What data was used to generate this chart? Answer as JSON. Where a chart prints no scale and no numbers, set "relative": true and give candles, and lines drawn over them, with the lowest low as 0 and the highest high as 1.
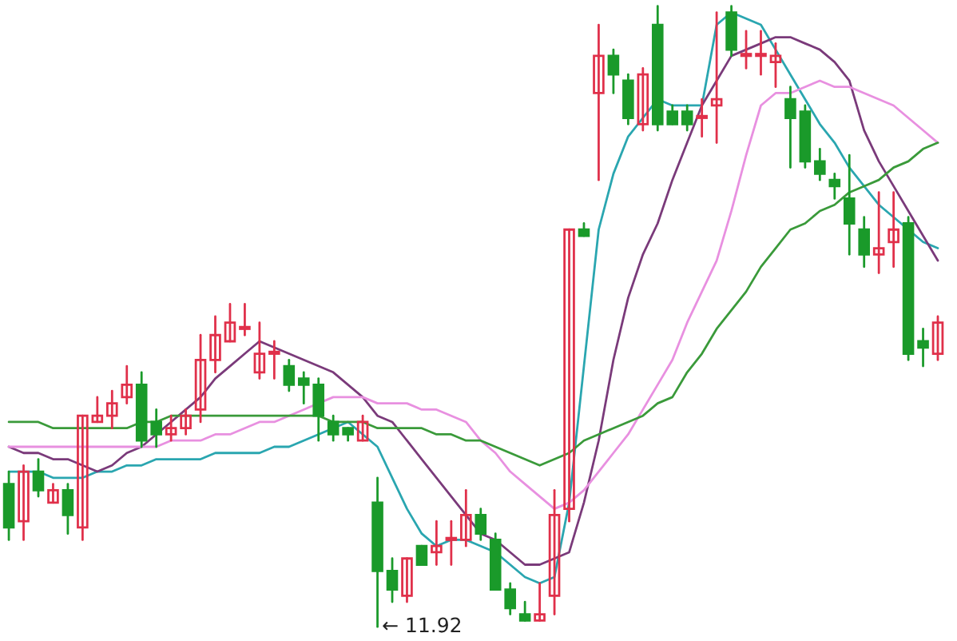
{
  "chart_data": {
    "type": "candlestick",
    "relative": true,
    "categories": [
      null,
      null,
      null,
      null,
      null,
      null,
      null,
      null,
      null,
      null,
      null,
      null,
      null,
      null,
      null,
      null,
      null,
      null,
      null,
      null,
      null,
      null,
      null,
      null,
      null,
      null,
      null,
      null,
      null,
      null,
      null,
      null,
      null,
      null,
      null,
      null,
      null,
      null,
      null,
      null,
      null,
      null,
      null,
      null,
      null,
      null,
      null,
      null,
      null,
      null,
      null,
      null,
      null,
      null,
      null,
      null,
      null,
      null,
      null,
      null,
      null,
      null,
      null,
      null
    ],
    "ohlc": [
      [
        0.23,
        0.25,
        0.14,
        0.16
      ],
      [
        0.17,
        0.26,
        0.14,
        0.25
      ],
      [
        0.25,
        0.27,
        0.21,
        0.22
      ],
      [
        0.2,
        0.23,
        0.2,
        0.22
      ],
      [
        0.22,
        0.23,
        0.15,
        0.18
      ],
      [
        0.16,
        0.34,
        0.14,
        0.34
      ],
      [
        0.33,
        0.37,
        0.33,
        0.34
      ],
      [
        0.34,
        0.38,
        0.32,
        0.36
      ],
      [
        0.37,
        0.42,
        0.36,
        0.39
      ],
      [
        0.39,
        0.41,
        0.29,
        0.3
      ],
      [
        0.33,
        0.35,
        0.29,
        0.31
      ],
      [
        0.31,
        0.34,
        0.3,
        0.32
      ],
      [
        0.32,
        0.35,
        0.31,
        0.34
      ],
      [
        0.35,
        0.47,
        0.33,
        0.43
      ],
      [
        0.43,
        0.5,
        0.41,
        0.47
      ],
      [
        0.46,
        0.52,
        0.46,
        0.49
      ],
      [
        0.48,
        0.52,
        0.47,
        0.48
      ],
      [
        0.41,
        0.49,
        0.4,
        0.44
      ],
      [
        0.44,
        0.46,
        0.4,
        0.44
      ],
      [
        0.42,
        0.43,
        0.38,
        0.39
      ],
      [
        0.4,
        0.41,
        0.36,
        0.39
      ],
      [
        0.39,
        0.4,
        0.3,
        0.34
      ],
      [
        0.33,
        0.34,
        0.3,
        0.31
      ],
      [
        0.32,
        0.32,
        0.3,
        0.31
      ],
      [
        0.3,
        0.34,
        0.3,
        0.33
      ],
      [
        0.2,
        0.24,
        0.0,
        0.09
      ],
      [
        0.09,
        0.11,
        0.04,
        0.06
      ],
      [
        0.05,
        0.11,
        0.04,
        0.11
      ],
      [
        0.13,
        0.13,
        0.1,
        0.1
      ],
      [
        0.12,
        0.17,
        0.1,
        0.13
      ],
      [
        0.14,
        0.17,
        0.1,
        0.14
      ],
      [
        0.14,
        0.22,
        0.13,
        0.18
      ],
      [
        0.18,
        0.19,
        0.14,
        0.15
      ],
      [
        0.14,
        0.15,
        0.06,
        0.06
      ],
      [
        0.06,
        0.07,
        0.02,
        0.03
      ],
      [
        0.02,
        0.04,
        0.01,
        0.01
      ],
      [
        0.01,
        0.07,
        0.01,
        0.02
      ],
      [
        0.05,
        0.22,
        0.02,
        0.18
      ],
      [
        0.19,
        0.64,
        0.17,
        0.64
      ],
      [
        0.64,
        0.65,
        0.63,
        0.63
      ],
      [
        0.86,
        0.97,
        0.72,
        0.92
      ],
      [
        0.92,
        0.93,
        0.86,
        0.89
      ],
      [
        0.88,
        0.89,
        0.81,
        0.82
      ],
      [
        0.81,
        0.9,
        0.8,
        0.89
      ],
      [
        0.97,
        1.0,
        0.8,
        0.81
      ],
      [
        0.83,
        0.84,
        0.81,
        0.81
      ],
      [
        0.83,
        0.84,
        0.8,
        0.81
      ],
      [
        0.82,
        0.85,
        0.79,
        0.82
      ],
      [
        0.84,
        0.99,
        0.78,
        0.85
      ],
      [
        0.99,
        1.0,
        0.92,
        0.93
      ],
      [
        0.92,
        0.96,
        0.9,
        0.92
      ],
      [
        0.92,
        0.96,
        0.89,
        0.92
      ],
      [
        0.91,
        0.94,
        0.87,
        0.92
      ],
      [
        0.85,
        0.87,
        0.74,
        0.82
      ],
      [
        0.83,
        0.84,
        0.74,
        0.75
      ],
      [
        0.75,
        0.77,
        0.72,
        0.73
      ],
      [
        0.72,
        0.73,
        0.69,
        0.71
      ],
      [
        0.69,
        0.76,
        0.6,
        0.65
      ],
      [
        0.64,
        0.66,
        0.58,
        0.6
      ],
      [
        0.6,
        0.7,
        0.57,
        0.61
      ],
      [
        0.62,
        0.7,
        0.58,
        0.64
      ],
      [
        0.65,
        0.66,
        0.43,
        0.44
      ],
      [
        0.46,
        0.48,
        0.42,
        0.45
      ],
      [
        0.44,
        0.5,
        0.43,
        0.49
      ]
    ],
    "series": [
      {
        "type": "line",
        "color": "#2aa6b0",
        "values": [
          0.25,
          0.25,
          0.25,
          0.24,
          0.24,
          0.24,
          0.25,
          0.25,
          0.26,
          0.26,
          0.27,
          0.27,
          0.27,
          0.27,
          0.28,
          0.28,
          0.28,
          0.28,
          0.29,
          0.29,
          0.3,
          0.31,
          0.32,
          0.33,
          0.31,
          0.29,
          0.24,
          0.19,
          0.15,
          0.13,
          0.14,
          0.14,
          0.13,
          0.12,
          0.1,
          0.08,
          0.07,
          0.08,
          0.2,
          0.42,
          0.64,
          0.73,
          0.79,
          0.82,
          0.85,
          0.84,
          0.84,
          0.84,
          0.97,
          0.99,
          0.98,
          0.97,
          0.93,
          0.89,
          0.85,
          0.81,
          0.78,
          0.74,
          0.71,
          0.68,
          0.66,
          0.64,
          0.62,
          0.61
        ]
      },
      {
        "type": "line",
        "color": "#7a3a7a",
        "values": [
          0.29,
          0.28,
          0.28,
          0.27,
          0.27,
          0.26,
          0.25,
          0.26,
          0.28,
          0.29,
          0.31,
          0.33,
          0.35,
          0.37,
          0.4,
          0.42,
          0.44,
          0.46,
          0.45,
          0.44,
          0.43,
          0.42,
          0.41,
          0.39,
          0.37,
          0.34,
          0.33,
          0.3,
          0.27,
          0.24,
          0.21,
          0.18,
          0.15,
          0.14,
          0.12,
          0.1,
          0.1,
          0.11,
          0.12,
          0.2,
          0.3,
          0.43,
          0.53,
          0.6,
          0.65,
          0.72,
          0.78,
          0.84,
          0.88,
          0.92,
          0.93,
          0.94,
          0.95,
          0.95,
          0.94,
          0.93,
          0.91,
          0.88,
          0.8,
          0.75,
          0.71,
          0.67,
          0.63,
          0.59
        ]
      },
      {
        "type": "line",
        "color": "#e890e0",
        "values": [
          0.29,
          0.29,
          0.29,
          0.29,
          0.29,
          0.29,
          0.29,
          0.29,
          0.29,
          0.29,
          0.29,
          0.3,
          0.3,
          0.3,
          0.31,
          0.31,
          0.32,
          0.33,
          0.33,
          0.34,
          0.35,
          0.36,
          0.37,
          0.37,
          0.37,
          0.36,
          0.36,
          0.36,
          0.35,
          0.35,
          0.34,
          0.33,
          0.3,
          0.28,
          0.25,
          0.23,
          0.21,
          0.19,
          0.2,
          0.22,
          0.25,
          0.28,
          0.31,
          0.35,
          0.39,
          0.43,
          0.49,
          0.54,
          0.59,
          0.67,
          0.76,
          0.84,
          0.86,
          0.86,
          0.87,
          0.88,
          0.87,
          0.87,
          0.86,
          0.85,
          0.84,
          0.82,
          0.8,
          0.78
        ]
      },
      {
        "type": "line",
        "color": "#3a9a3a",
        "values": [
          0.33,
          0.33,
          0.33,
          0.32,
          0.32,
          0.32,
          0.32,
          0.32,
          0.32,
          0.33,
          0.33,
          0.34,
          0.34,
          0.34,
          0.34,
          0.34,
          0.34,
          0.34,
          0.34,
          0.34,
          0.34,
          0.34,
          0.33,
          0.33,
          0.33,
          0.32,
          0.32,
          0.32,
          0.32,
          0.31,
          0.31,
          0.3,
          0.3,
          0.29,
          0.28,
          0.27,
          0.26,
          0.27,
          0.28,
          0.3,
          0.31,
          0.32,
          0.33,
          0.34,
          0.36,
          0.37,
          0.41,
          0.44,
          0.48,
          0.51,
          0.54,
          0.58,
          0.61,
          0.64,
          0.65,
          0.67,
          0.68,
          0.7,
          0.71,
          0.72,
          0.74,
          0.75,
          0.77,
          0.78
        ]
      }
    ],
    "annotations": [
      "← 11.92"
    ]
  }
}
